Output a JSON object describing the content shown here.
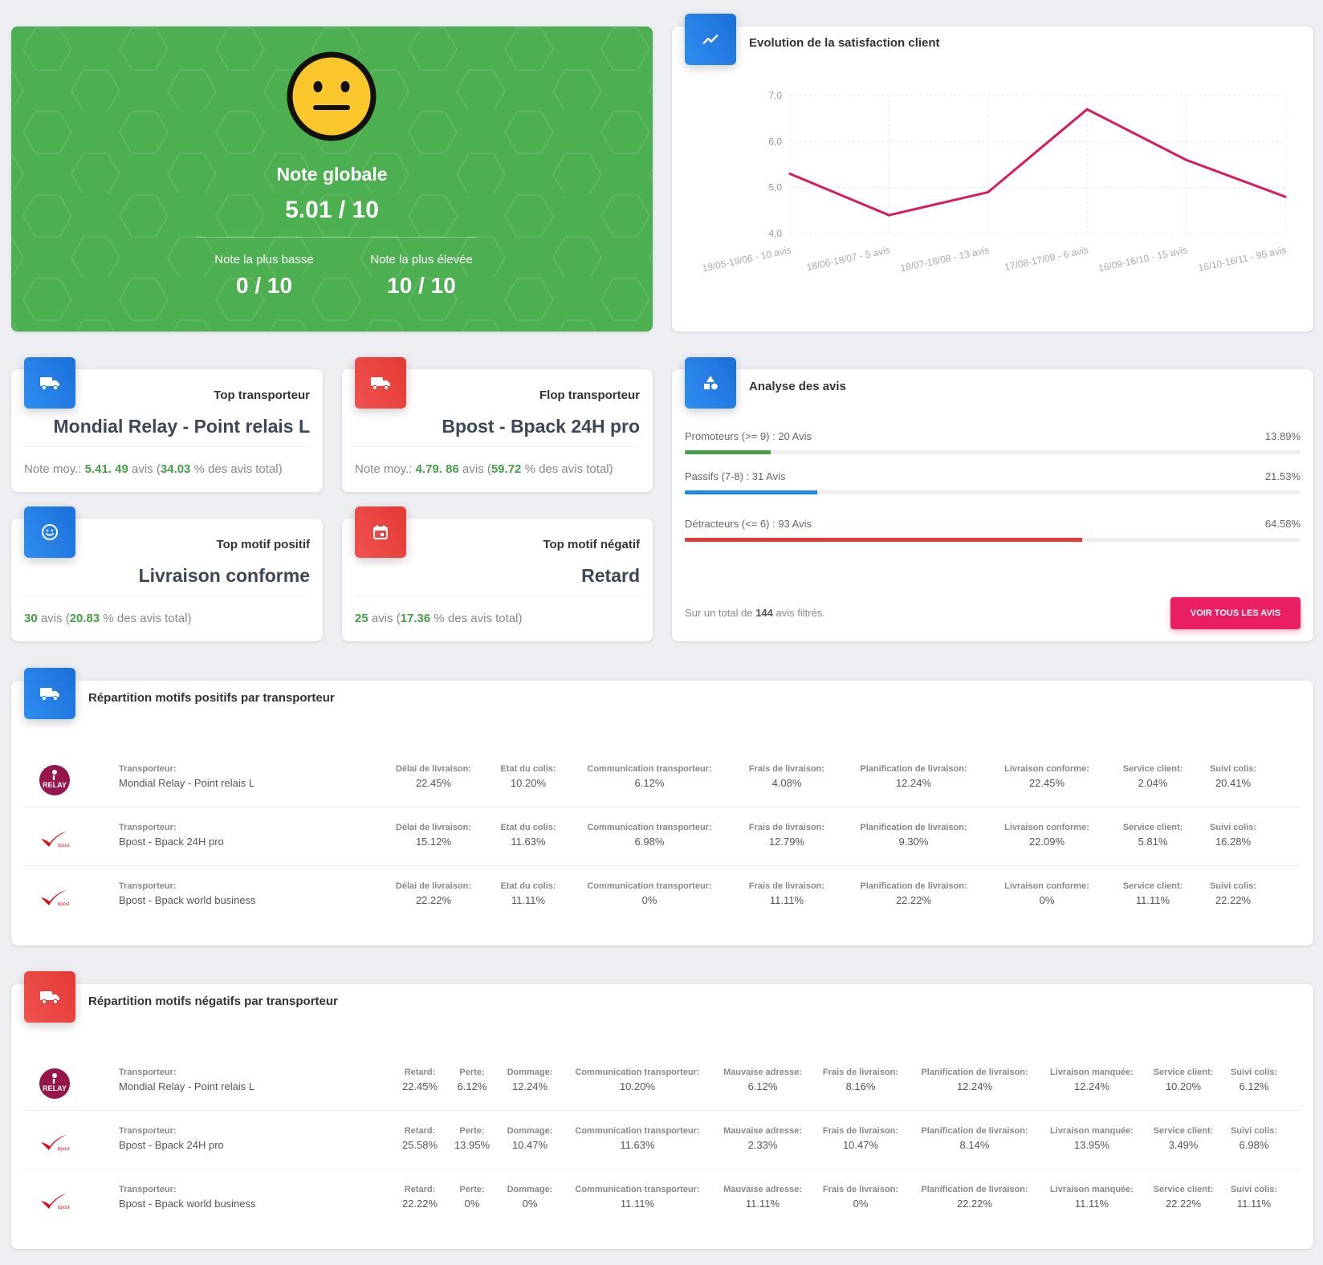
{
  "hero": {
    "title": "Note globale",
    "score": "5.01 / 10",
    "low_label": "Note la plus basse",
    "low_value": "0 / 10",
    "high_label": "Note la plus élevée",
    "high_value": "10 / 10",
    "icon": "neutral-face-icon",
    "color": "#4caf50"
  },
  "evolution": {
    "title": "Evolution de la satisfaction client",
    "icon": "trending-up-icon",
    "chart_data": {
      "type": "line",
      "categories": [
        "19/05-19/06 - 10 avis",
        "18/06-18/07 - 5 avis",
        "18/07-18/08 - 13 avis",
        "17/08-17/09 - 6 avis",
        "16/09-16/10 - 15 avis",
        "16/10-16/11 - 95 avis"
      ],
      "values": [
        5.3,
        4.4,
        4.9,
        6.7,
        5.6,
        4.8
      ],
      "yticks": [
        "7,0",
        "6,0",
        "5,0",
        "4,0"
      ],
      "ylim": [
        4,
        7
      ],
      "color": "#d81b60",
      "grid": true
    }
  },
  "top_transporteur": {
    "label": "Top transporteur",
    "value": "Mondial Relay - Point relais L",
    "note_prefix": "Note moy.:",
    "note": "5.41.",
    "count": "49",
    "avis_word": "avis (",
    "pct": "34.03",
    "suffix": "% des avis total)",
    "icon": "truck-icon"
  },
  "flop_transporteur": {
    "label": "Flop transporteur",
    "value": "Bpost - Bpack 24H pro",
    "note_prefix": "Note moy.:",
    "note": "4.79.",
    "count": "86",
    "avis_word": "avis (",
    "pct": "59.72",
    "suffix": "% des avis total)",
    "icon": "truck-icon"
  },
  "top_motif_positif": {
    "label": "Top motif positif",
    "value": "Livraison conforme",
    "count": "30",
    "avis_word": "avis (",
    "pct": "20.83",
    "suffix": "% des avis total)",
    "icon": "smile-icon"
  },
  "top_motif_negatif": {
    "label": "Top motif négatif",
    "value": "Retard",
    "count": "25",
    "avis_word": "avis (",
    "pct": "17.36",
    "suffix": "% des avis total)",
    "icon": "calendar-icon"
  },
  "analyse": {
    "title": "Analyse des avis",
    "icon": "shapes-icon",
    "rows": [
      {
        "label": "Promoteurs (>= 9) : 20 Avis",
        "pct": "13.89%",
        "value": 13.89,
        "color": "#43a047"
      },
      {
        "label": "Passifs (7-8) : 31 Avis",
        "pct": "21.53%",
        "value": 21.53,
        "color": "#1e88e5"
      },
      {
        "label": "Détracteurs (<= 6) : 93 Avis",
        "pct": "64.58%",
        "value": 64.58,
        "color": "#e53935"
      }
    ],
    "total_prefix": "Sur un total de",
    "total": "144",
    "total_suffix": "avis filtrés.",
    "button": "VOIR TOUS LES AVIS"
  },
  "positifs": {
    "title": "Répartition motifs positifs par transporteur",
    "carrier_key": "Transporteur:",
    "columns": [
      "Délai de livraison:",
      "Etat du colis:",
      "Communication transporteur:",
      "Frais de livraison:",
      "Planification de livraison:",
      "Livraison conforme:",
      "Service client:",
      "Suivi colis:"
    ],
    "rows": [
      {
        "carrier": "Mondial Relay - Point relais L",
        "logo": "mondial-relay-logo",
        "values": [
          "22.45%",
          "10.20%",
          "6.12%",
          "4.08%",
          "12.24%",
          "22.45%",
          "2.04%",
          "20.41%"
        ]
      },
      {
        "carrier": "Bpost - Bpack 24H pro",
        "logo": "bpost-logo",
        "values": [
          "15.12%",
          "11.63%",
          "6.98%",
          "12.79%",
          "9.30%",
          "22.09%",
          "5.81%",
          "16.28%"
        ]
      },
      {
        "carrier": "Bpost - Bpack world business",
        "logo": "bpost-logo",
        "values": [
          "22.22%",
          "11.11%",
          "0%",
          "11.11%",
          "22.22%",
          "0%",
          "11.11%",
          "22.22%"
        ]
      }
    ]
  },
  "negatifs": {
    "title": "Répartition motifs négatifs par transporteur",
    "carrier_key": "Transporteur:",
    "columns": [
      "Retard:",
      "Perte:",
      "Dommage:",
      "Communication transporteur:",
      "Mauvaise adresse:",
      "Frais de livraison:",
      "Planification de livraison:",
      "Livraison manquée:",
      "Service client:",
      "Suivi colis:"
    ],
    "rows": [
      {
        "carrier": "Mondial Relay - Point relais L",
        "logo": "mondial-relay-logo",
        "values": [
          "22.45%",
          "6.12%",
          "12.24%",
          "10.20%",
          "6.12%",
          "8.16%",
          "12.24%",
          "12.24%",
          "10.20%",
          "6.12%"
        ]
      },
      {
        "carrier": "Bpost - Bpack 24H pro",
        "logo": "bpost-logo",
        "values": [
          "25.58%",
          "13.95%",
          "10.47%",
          "11.63%",
          "2.33%",
          "10.47%",
          "8.14%",
          "13.95%",
          "3.49%",
          "6.98%"
        ]
      },
      {
        "carrier": "Bpost - Bpack world business",
        "logo": "bpost-logo",
        "values": [
          "22.22%",
          "0%",
          "0%",
          "11.11%",
          "11.11%",
          "0%",
          "22.22%",
          "11.11%",
          "22.22%",
          "11.11%"
        ]
      }
    ]
  }
}
